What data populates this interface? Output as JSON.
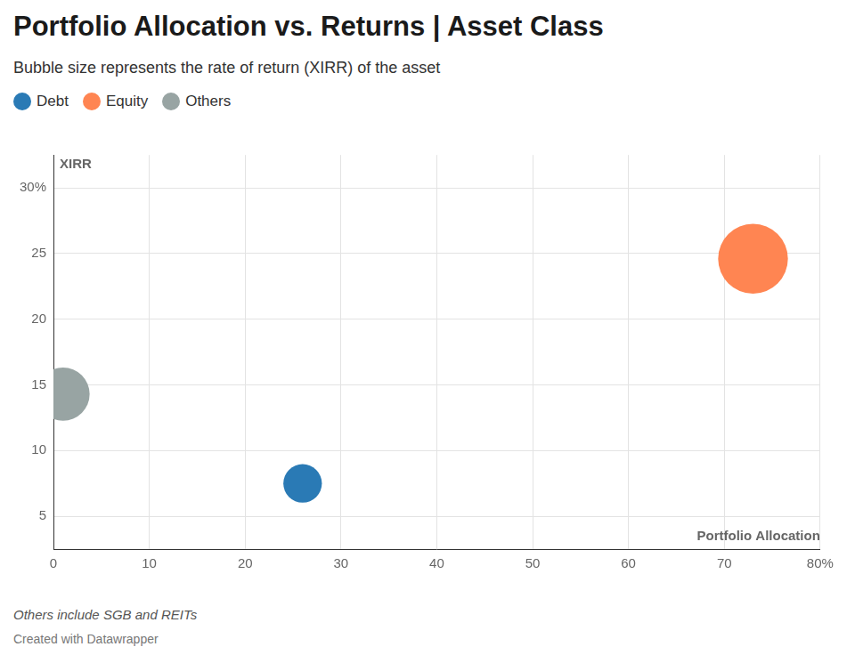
{
  "chart_data": {
    "type": "bubble",
    "title": "Portfolio Allocation vs. Returns | Asset Class",
    "subtitle": "Bubble size represents the rate of return (XIRR) of the asset",
    "x_label": "Portfolio Allocation",
    "y_label": "XIRR",
    "series": [
      {
        "name": "Debt",
        "color": "#2a7ab5",
        "x": [
          26
        ],
        "values": [
          7.5
        ],
        "sizes": [
          7.5
        ]
      },
      {
        "name": "Equity",
        "color": "#ff8552",
        "x": [
          73
        ],
        "values": [
          24.6
        ],
        "sizes": [
          24.6
        ]
      },
      {
        "name": "Others",
        "color": "#98a4a3",
        "x": [
          1
        ],
        "values": [
          14.3
        ],
        "sizes": [
          14.3
        ]
      }
    ],
    "xlim": [
      0,
      80
    ],
    "xticks": [
      0,
      10,
      20,
      30,
      40,
      50,
      60,
      70,
      {
        "value": 80,
        "label": "80%"
      }
    ],
    "ylim": [
      2.5,
      32.5
    ],
    "yticks": [
      5,
      10,
      15,
      20,
      25,
      {
        "value": 30,
        "label": "30%"
      }
    ],
    "grid": true,
    "legend": "top-left",
    "footnote": "Others include SGB and REITs",
    "credit": "Created with Datawrapper"
  }
}
